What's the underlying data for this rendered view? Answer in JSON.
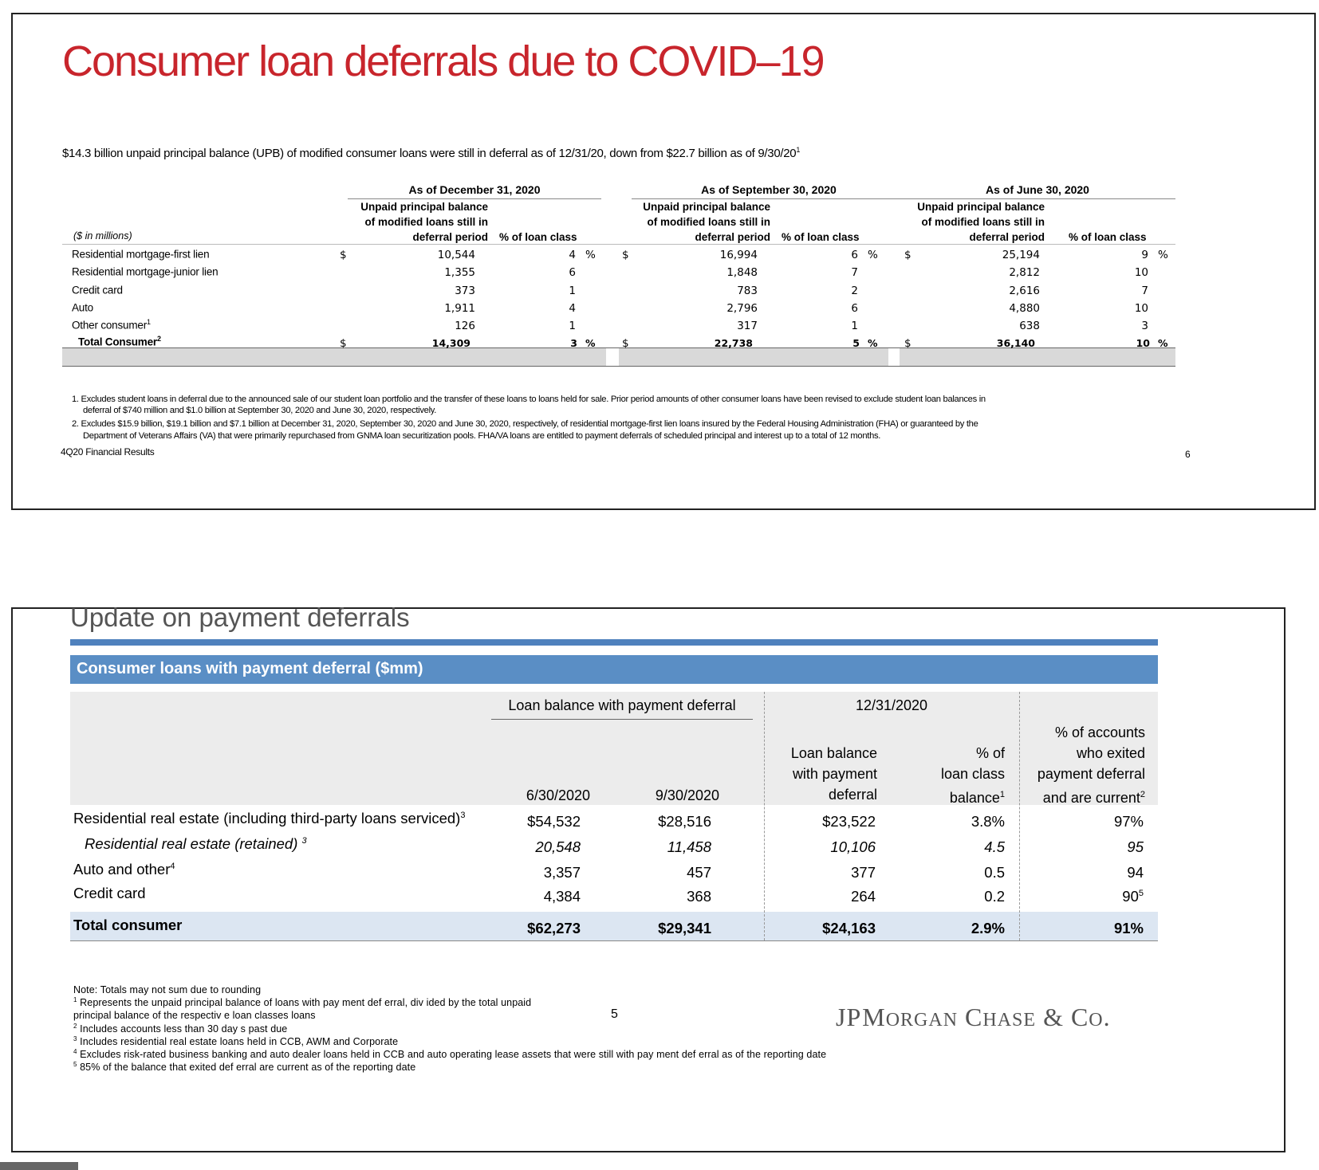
{
  "slide1": {
    "title": "Consumer loan deferrals  due to COVID–19",
    "subtitle": "$14.3 billion unpaid principal balance (UPB)  of modified consumer loans were still in deferral as of 12/31/20, down from $22.7 billion as of 9/30/20",
    "subtitle_sup": "1",
    "units_label": "($ in millions)",
    "blocks": [
      {
        "heading": "As of December 31, 2020",
        "col1_line1": "Unpaid principal balance",
        "col1_line2": "of modified loans still in",
        "col1_line3": "deferral period",
        "col2": "% of loan class"
      },
      {
        "heading": "As of September 30, 2020",
        "col1_line1": "Unpaid principal balance",
        "col1_line2": "of modified loans still in",
        "col1_line3": "deferral period",
        "col2": "% of loan class"
      },
      {
        "heading": "As of June 30, 2020",
        "col1_line1": "Unpaid principal balance",
        "col1_line2": "of modified loans still in",
        "col1_line3": "deferral period",
        "col2": "% of loan class"
      }
    ],
    "rows": [
      {
        "label": "Residential mortgage-first lien",
        "sup": "",
        "dec": "10,544",
        "dec_pct": "4",
        "sep": "16,994",
        "sep_pct": "6",
        "jun": "25,194",
        "jun_pct": "9"
      },
      {
        "label": "Residential mortgage-junior lien",
        "sup": "",
        "dec": "1,355",
        "dec_pct": "6",
        "sep": "1,848",
        "sep_pct": "7",
        "jun": "2,812",
        "jun_pct": "10"
      },
      {
        "label": "Credit card",
        "sup": "",
        "dec": "373",
        "dec_pct": "1",
        "sep": "783",
        "sep_pct": "2",
        "jun": "2,616",
        "jun_pct": "7"
      },
      {
        "label": "Auto",
        "sup": "",
        "dec": "1,911",
        "dec_pct": "4",
        "sep": "2,796",
        "sep_pct": "6",
        "jun": "4,880",
        "jun_pct": "10"
      },
      {
        "label": "Other consumer",
        "sup": "1",
        "dec": "126",
        "dec_pct": "1",
        "sep": "317",
        "sep_pct": "1",
        "jun": "638",
        "jun_pct": "3"
      }
    ],
    "total": {
      "label": "Total Consumer",
      "sup": "2",
      "dec": "14,309",
      "dec_pct": "3",
      "sep": "22,738",
      "sep_pct": "5",
      "jun": "36,140",
      "jun_pct": "10"
    },
    "dollar": "$",
    "pct": "%",
    "footnotes": [
      "1. Excludes student loans in deferral due to the announced sale of our student loan portfolio and the transfer of these loans to loans held for sale. Prior period amounts of other consumer loans have been revised to exclude student loan balances in",
      "deferral of $740 million and $1.0 billion at September 30, 2020 and June 30, 2020, respectively.",
      "2. Excludes $15.9 billion, $19.1 billion and $7.1 billion at December 31, 2020, September 30, 2020 and June 30, 2020, respectively, of residential mortgage-first lien loans insured by the Federal Housing Administration (FHA) or guaranteed by the",
      "Department of Veterans Affairs (VA) that were primarily repurchased from GNMA loan securitization pools. FHA/VA loans are entitled to payment deferrals of scheduled principal and interest up to a total of 12 months."
    ],
    "source": "4Q20 Financial Results",
    "page": "6"
  },
  "slide2": {
    "title": "Update on payment deferrals",
    "header": "Consumer loans with payment deferral ($mm)",
    "group1": "Loan balance with payment deferral",
    "group2": "12/31/2020",
    "col_jun": "6/30/2020",
    "col_sep": "9/30/2020",
    "col_bal": [
      "Loan balance",
      "with payment",
      "deferral"
    ],
    "col_pct": [
      "% of",
      "loan class",
      "balance"
    ],
    "col_pct_sup": "1",
    "col_exit": [
      "% of accounts",
      "who exited",
      "payment deferral",
      "and are current"
    ],
    "col_exit_sup": "2",
    "rows": [
      {
        "label": "Residential real estate (including third-party loans serviced)",
        "sup": "3",
        "jun": "$54,532",
        "sep": "$28,516",
        "bal": "$23,522",
        "pct": "3.8%",
        "exit": "97%",
        "exit_sup": ""
      },
      {
        "label": "Residential real estate (retained) ",
        "sup": "3",
        "jun": "20,548",
        "sep": "11,458",
        "bal": "10,106",
        "pct": "4.5",
        "exit": "95",
        "exit_sup": ""
      },
      {
        "label": "Auto and other",
        "sup": "4",
        "jun": "3,357",
        "sep": "457",
        "bal": "377",
        "pct": "0.5",
        "exit": "94",
        "exit_sup": ""
      },
      {
        "label": "Credit card",
        "sup": "",
        "jun": "4,384",
        "sep": "368",
        "bal": "264",
        "pct": "0.2",
        "exit": "90",
        "exit_sup": "5"
      }
    ],
    "total": {
      "label": "Total consumer",
      "jun": "$62,273",
      "sep": "$29,341",
      "bal": "$24,163",
      "pct": "2.9%",
      "exit": "91%"
    },
    "notes": [
      {
        "sup": "",
        "text": "Note: Totals  may not sum due to rounding"
      },
      {
        "sup": "1",
        "text": " Represents the unpaid principal balance of loans with pay ment def erral, div ided by the total unpaid"
      },
      {
        "sup": "",
        "text": "principal balance of the respectiv e loan classes loans"
      },
      {
        "sup": "2",
        "text": " Includes accounts less  than 30 day s past due"
      },
      {
        "sup": "3",
        "text": " Includes residential real estate loans  held in CCB, AWM and Corporate"
      },
      {
        "sup": "4",
        "text": " Excludes risk-rated business banking  and auto dealer loans  held in CCB and auto operating  lease assets that were  still with pay ment def erral as  of the reporting date"
      },
      {
        "sup": "5",
        "text": " 85% of the balance that exited def erral are current  as of the reporting date"
      }
    ],
    "page": "5",
    "logo_main": "JPMORGAN CHASE & CO."
  }
}
